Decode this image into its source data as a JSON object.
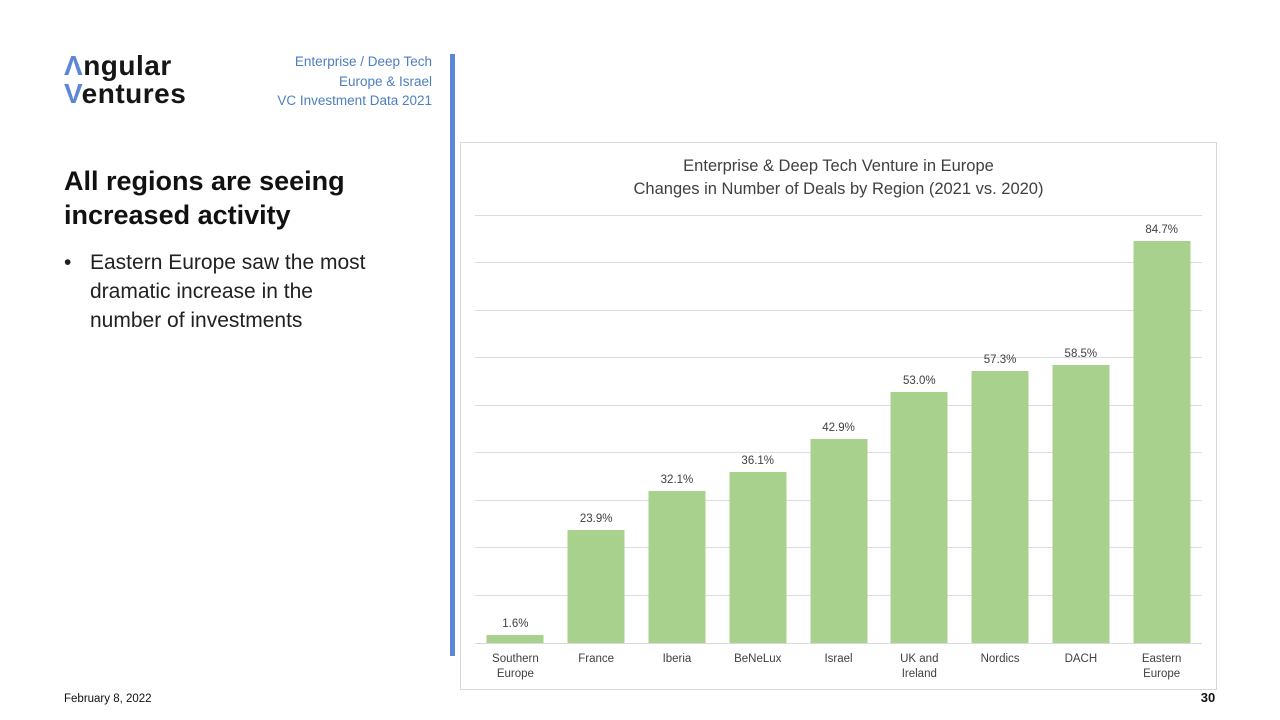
{
  "logo": {
    "line1_accent": "Λ",
    "line1_rest": "ngular",
    "line2_accent": "V",
    "line2_rest": "entures"
  },
  "header": {
    "lines": [
      "Enterprise / Deep Tech",
      "Europe & Israel",
      "VC Investment Data 2021"
    ]
  },
  "content": {
    "heading_line1": "All regions are seeing",
    "heading_line2": "increased activity",
    "bullet_glyph": "•",
    "bullet_text": "Eastern Europe saw the most dramatic increase in the number of investments"
  },
  "chart_data": {
    "type": "bar",
    "title_lines": [
      "Enterprise & Deep Tech Venture in Europe",
      "Changes in Number of Deals by Region (2021 vs. 2020)"
    ],
    "categories": [
      "Southern Europe",
      "France",
      "Iberia",
      "BeNeLux",
      "Israel",
      "UK and Ireland",
      "Nordics",
      "DACH",
      "Eastern Europe"
    ],
    "values": [
      1.6,
      23.9,
      32.1,
      36.1,
      42.9,
      53.0,
      57.3,
      58.5,
      84.7
    ],
    "value_labels": [
      "1.6%",
      "23.9%",
      "32.1%",
      "36.1%",
      "42.9%",
      "53.0%",
      "57.3%",
      "58.5%",
      "84.7%"
    ],
    "xlabel": "",
    "ylabel": "",
    "ylim": [
      0,
      90
    ],
    "gridline_step": 10,
    "grid": true,
    "legend": false,
    "bar_color": "#a9d18e"
  },
  "footer": {
    "date": "February 8, 2022",
    "page_number": "30"
  },
  "colors": {
    "accent_blue": "#5b87d6",
    "header_text_blue": "#4d7ebf",
    "bar_green": "#a9d18e",
    "gridline_gray": "#dcdcdc",
    "chart_text_gray": "#404040"
  }
}
